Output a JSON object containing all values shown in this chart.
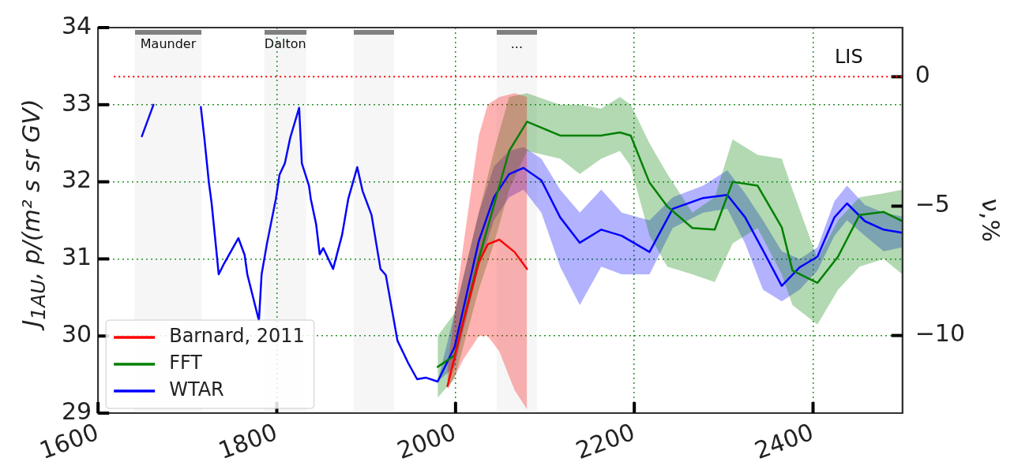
{
  "chart_data": {
    "type": "line",
    "xlabel": null,
    "ylabel": "J$_{1AU}$, p/(m² s sr GV)",
    "y2label": "ν,%",
    "xlim": [
      1600,
      2500
    ],
    "xticks": [
      1600,
      1800,
      2000,
      2200,
      2400
    ],
    "ylim": [
      29,
      34
    ],
    "yticks": [
      29,
      30,
      31,
      32,
      33,
      34
    ],
    "y2lim": [
      -13,
      1.9
    ],
    "y2ticks": [
      0,
      -5,
      -10
    ],
    "grid": true,
    "legend": "bottom left",
    "line_style": "solid",
    "marker": "none",
    "ref_lines": [
      {
        "axis": "y2",
        "value": 0,
        "label": "LIS",
        "color": "#ff0000",
        "line_style": "dotted"
      }
    ],
    "bands": [
      {
        "axis": "x",
        "from": 1641,
        "to": 1716,
        "label": "Maunder",
        "color": "#808080"
      },
      {
        "axis": "x",
        "from": 1786,
        "to": 1833,
        "label": "Dalton",
        "color": "#808080"
      },
      {
        "axis": "x",
        "from": 1886,
        "to": 1931,
        "label": null,
        "color": "#808080"
      },
      {
        "axis": "x",
        "from": 2046,
        "to": 2091,
        "label": "...",
        "color": "#808080"
      }
    ],
    "series": [
      {
        "name": "Barnard, 2011",
        "color": "#ff0000",
        "x": [
          1991,
          2009,
          2026,
          2036,
          2049,
          2066,
          2080
        ],
        "values": [
          29.35,
          30.2,
          30.95,
          31.19,
          31.25,
          31.09,
          30.87
        ],
        "lower": [
          29.3,
          29.7,
          30.0,
          30.0,
          29.8,
          29.3,
          29.05
        ],
        "upper": [
          29.6,
          31.2,
          32.6,
          33.0,
          33.1,
          33.15,
          33.1
        ]
      },
      {
        "name": "FFT",
        "color": "#008000",
        "x": [
          1980,
          1999,
          2026,
          2043,
          2060,
          2080,
          2117,
          2139,
          2163,
          2184,
          2196,
          2217,
          2237,
          2265,
          2290,
          2310,
          2338,
          2365,
          2377,
          2405,
          2428,
          2452,
          2479,
          2500
        ],
        "values": [
          29.6,
          29.75,
          31.0,
          31.7,
          32.4,
          32.78,
          32.6,
          32.6,
          32.6,
          32.64,
          32.6,
          31.99,
          31.68,
          31.4,
          31.38,
          32.0,
          31.95,
          31.41,
          30.85,
          30.69,
          31.03,
          31.57,
          31.61,
          31.49
        ],
        "lower": [
          29.2,
          29.45,
          30.6,
          31.2,
          31.9,
          32.4,
          32.3,
          32.1,
          32.3,
          32.4,
          32.2,
          31.3,
          30.9,
          30.8,
          30.7,
          31.2,
          31.4,
          30.8,
          30.4,
          30.15,
          30.6,
          30.9,
          31.0,
          30.8
        ],
        "upper": [
          30.0,
          30.3,
          31.6,
          32.4,
          33.1,
          33.15,
          33.0,
          33.0,
          32.95,
          33.1,
          33.0,
          32.5,
          32.1,
          31.6,
          31.8,
          32.55,
          32.35,
          32.3,
          31.9,
          31.0,
          31.5,
          31.8,
          31.85,
          31.9
        ]
      },
      {
        "name": "WTAR",
        "color": "#0000ff",
        "x": [
          1649,
          1662,
          1690,
          1715,
          1719,
          1724,
          1727,
          1731,
          1735,
          1741,
          1757,
          1764,
          1767,
          1780,
          1783,
          1789,
          1799,
          1803,
          1809,
          1815,
          1825,
          1828,
          1836,
          1838,
          1844,
          1848,
          1852,
          1863,
          1873,
          1880,
          1890,
          1896,
          1906,
          1916,
          1922,
          1935,
          1947,
          1957,
          1967,
          1980,
          1999,
          2026,
          2043,
          2060,
          2076,
          2096,
          2117,
          2139,
          2163,
          2186,
          2217,
          2243,
          2277,
          2304,
          2324,
          2344,
          2365,
          2385,
          2405,
          2424,
          2438,
          2458,
          2479,
          2500
        ],
        "values": [
          32.59,
          33.0,
          null,
          32.97,
          32.56,
          31.99,
          31.73,
          31.27,
          30.8,
          30.94,
          31.27,
          31.05,
          30.8,
          30.2,
          30.8,
          31.2,
          31.78,
          32.09,
          32.24,
          32.57,
          32.96,
          32.24,
          31.95,
          31.78,
          31.45,
          31.06,
          31.14,
          30.87,
          31.31,
          31.78,
          32.19,
          31.88,
          31.57,
          30.87,
          30.79,
          29.94,
          29.65,
          29.44,
          29.46,
          29.41,
          29.86,
          31.23,
          31.8,
          32.1,
          32.18,
          32.02,
          31.54,
          31.21,
          31.38,
          31.3,
          31.09,
          31.65,
          31.79,
          31.83,
          31.54,
          31.11,
          30.65,
          30.89,
          31.03,
          31.54,
          31.72,
          31.49,
          31.38,
          31.34
        ],
        "lower": [
          null,
          null,
          null,
          null,
          null,
          null,
          null,
          null,
          null,
          null,
          null,
          null,
          null,
          null,
          null,
          null,
          null,
          null,
          null,
          null,
          null,
          null,
          null,
          null,
          null,
          null,
          null,
          null,
          null,
          null,
          null,
          null,
          null,
          null,
          null,
          null,
          null,
          null,
          null,
          29.41,
          29.6,
          30.9,
          31.5,
          31.8,
          31.9,
          31.6,
          30.9,
          30.4,
          30.9,
          30.8,
          30.8,
          31.4,
          31.6,
          31.65,
          31.2,
          30.6,
          30.45,
          30.6,
          30.85,
          31.3,
          31.5,
          31.3,
          31.1,
          31.15
        ],
        "upper": [
          null,
          null,
          null,
          null,
          null,
          null,
          null,
          null,
          null,
          null,
          null,
          null,
          null,
          null,
          null,
          null,
          null,
          null,
          null,
          null,
          null,
          null,
          null,
          null,
          null,
          null,
          null,
          null,
          null,
          null,
          null,
          null,
          null,
          null,
          null,
          null,
          null,
          null,
          null,
          29.41,
          30.3,
          31.6,
          32.2,
          32.4,
          32.45,
          32.3,
          31.9,
          31.6,
          31.9,
          31.6,
          31.5,
          31.8,
          31.95,
          32.15,
          31.85,
          31.5,
          31.1,
          31.0,
          31.15,
          31.75,
          31.95,
          31.7,
          31.6,
          31.55
        ]
      }
    ]
  }
}
